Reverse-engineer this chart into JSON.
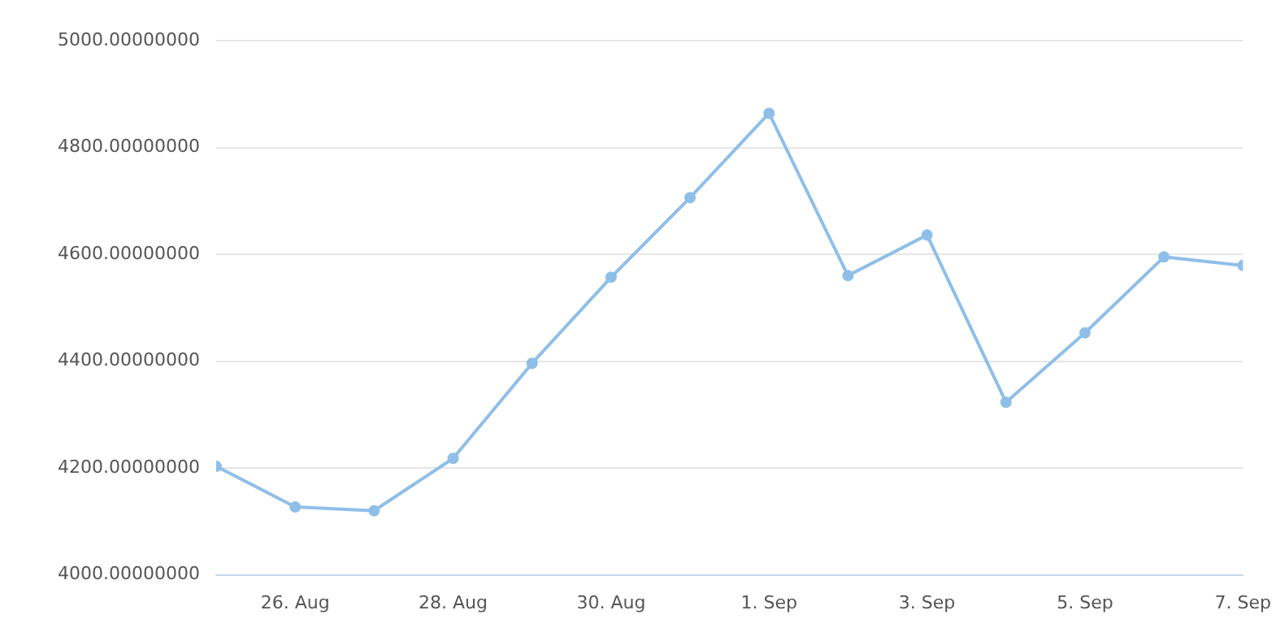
{
  "chart_data": {
    "type": "line",
    "x": [
      "--08-25",
      "--08-26",
      "--08-27",
      "--08-28",
      "--08-29",
      "--08-30",
      "--08-31",
      "--09-01",
      "--09-02",
      "--09-03",
      "--09-04",
      "--09-05",
      "--09-06",
      "--09-07"
    ],
    "series": [
      {
        "color": "#8fbfe8",
        "values": [
          4203,
          4127,
          4120,
          4218,
          4396,
          4557,
          4706,
          4864,
          4560,
          4636,
          4323,
          4453,
          4595,
          4579
        ]
      }
    ],
    "xlim": [
      "--08-25",
      "--09-07"
    ],
    "xticks": [
      {
        "value": "--08-26",
        "label": "26. Aug"
      },
      {
        "value": "--08-28",
        "label": "28. Aug"
      },
      {
        "value": "--08-30",
        "label": "30. Aug"
      },
      {
        "value": "--09-01",
        "label": "1. Sep"
      },
      {
        "value": "--09-03",
        "label": "3. Sep"
      },
      {
        "value": "--09-05",
        "label": "5. Sep"
      },
      {
        "value": "--09-07",
        "label": "7. Sep"
      }
    ],
    "ylim": [
      4000,
      5000
    ],
    "yticks": [
      {
        "value": 4000,
        "label": "4000.00000000"
      },
      {
        "value": 4200,
        "label": "4200.00000000"
      },
      {
        "value": 4400,
        "label": "4400.00000000"
      },
      {
        "value": 4600,
        "label": "4600.00000000"
      },
      {
        "value": 4800,
        "label": "4800.00000000"
      },
      {
        "value": 5000,
        "label": "5000.00000000"
      }
    ],
    "grid": "y",
    "legend": false,
    "marker": "circle",
    "line_style": "solid"
  }
}
